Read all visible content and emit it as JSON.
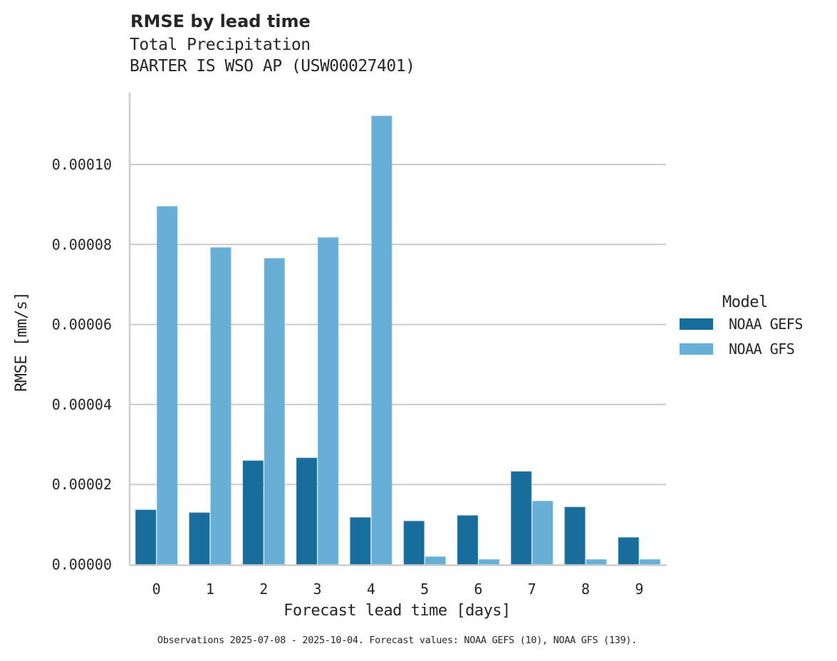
{
  "header": {
    "title": "RMSE by lead time",
    "subtitle_variable": "Total Precipitation",
    "subtitle_station": "BARTER IS WSO AP (USW00027401)"
  },
  "footnote": "Observations 2025-07-08 - 2025-10-04. Forecast values: NOAA GEFS (10), NOAA GFS (139).",
  "legend": {
    "title": "Model",
    "items": [
      {
        "label": "NOAA GEFS",
        "color": "#176d9c"
      },
      {
        "label": "NOAA GFS",
        "color": "#67afd7"
      }
    ]
  },
  "chart_data": {
    "type": "bar",
    "title": "RMSE by lead time",
    "subtitle": "Total Precipitation / BARTER IS WSO AP (USW00027401)",
    "xlabel": "Forecast lead time [days]",
    "ylabel": "RMSE [mm/s]",
    "categories": [
      "0",
      "1",
      "2",
      "3",
      "4",
      "5",
      "6",
      "7",
      "8",
      "9"
    ],
    "series": [
      {
        "name": "NOAA GEFS",
        "color": "#176d9c",
        "values": [
          1.36e-05,
          1.29e-05,
          2.59e-05,
          2.66e-05,
          1.17e-05,
          1.08e-05,
          1.22e-05,
          2.32e-05,
          1.43e-05,
          6.7e-06
        ]
      },
      {
        "name": "NOAA GFS",
        "color": "#67afd7",
        "values": [
          8.95e-05,
          7.92e-05,
          7.65e-05,
          8.17e-05,
          0.0001121,
          1.9e-06,
          1.2e-06,
          1.58e-05,
          1.2e-06,
          1.2e-06
        ]
      }
    ],
    "ylim": [
      0,
      0.000118
    ],
    "yticks": [
      0,
      2e-05,
      4e-05,
      6e-05,
      8e-05,
      0.0001
    ],
    "ytick_labels": [
      "0.00000",
      "0.00002",
      "0.00004",
      "0.00006",
      "0.00008",
      "0.00010"
    ],
    "grid": "horizontal",
    "legend_position": "right"
  }
}
